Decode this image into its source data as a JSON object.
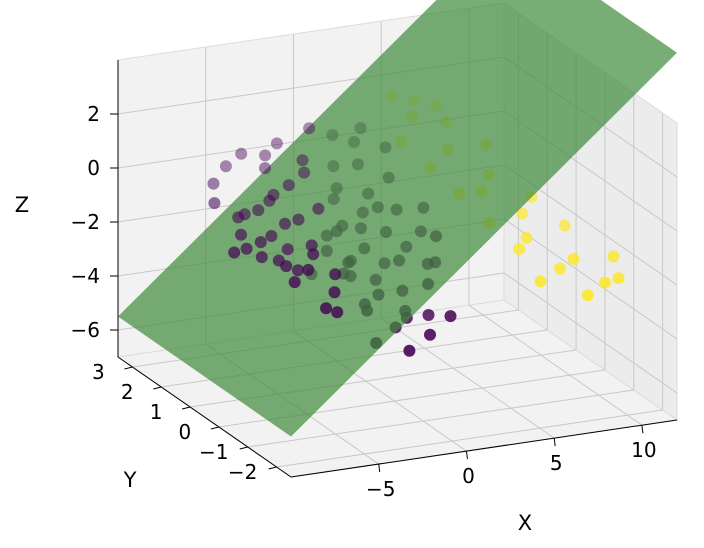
{
  "chart_data": {
    "type": "scatter3d",
    "title": "",
    "xlabel": "X",
    "ylabel": "Y",
    "zlabel": "Z",
    "xlim": [
      -10,
      12
    ],
    "ylim": [
      -2.5,
      3.5
    ],
    "zlim": [
      -7,
      4
    ],
    "xticks": [
      {
        "v": -5,
        "label": "−5"
      },
      {
        "v": 0,
        "label": "0"
      },
      {
        "v": 5,
        "label": "5"
      },
      {
        "v": 10,
        "label": "10"
      }
    ],
    "yticks": [
      {
        "v": -2,
        "label": "−2"
      },
      {
        "v": -1,
        "label": "−1"
      },
      {
        "v": 0,
        "label": "0"
      },
      {
        "v": 1,
        "label": "1"
      },
      {
        "v": 2,
        "label": "2"
      },
      {
        "v": 3,
        "label": "3"
      }
    ],
    "zticks": [
      {
        "v": -6,
        "label": "−6"
      },
      {
        "v": -4,
        "label": "−4"
      },
      {
        "v": -2,
        "label": "−2"
      },
      {
        "v": 0,
        "label": "0"
      },
      {
        "v": 2,
        "label": "2"
      }
    ],
    "grid": true,
    "colors": {
      "class0": "#440154",
      "class1": "#fde725",
      "plane": "#3f8a3a",
      "pane": "#f2f2f2",
      "grid": "#c8c8c8"
    },
    "plane": {
      "note": "decision plane z = a*x + b*y + c",
      "a": 0.55,
      "b": 0,
      "c": 0,
      "xrange": [
        -10,
        12
      ],
      "yrange": [
        -2.5,
        3.5
      ]
    },
    "series": [
      {
        "class": 0,
        "points": [
          [
            -8.8,
            0.2,
            -0.8
          ],
          [
            -7.6,
            0.5,
            -1.0
          ],
          [
            -7.1,
            1.0,
            -0.9
          ],
          [
            -6.9,
            0.4,
            -1.3
          ],
          [
            -6.6,
            1.4,
            -0.6
          ],
          [
            -6.3,
            0.8,
            -1.1
          ],
          [
            -6.0,
            0.1,
            -1.5
          ],
          [
            -5.9,
            1.6,
            -0.7
          ],
          [
            -5.6,
            0.6,
            -1.7
          ],
          [
            -5.4,
            -0.3,
            -1.4
          ],
          [
            -5.2,
            1.1,
            -1.2
          ],
          [
            -5.0,
            0.3,
            -1.9
          ],
          [
            -4.8,
            1.8,
            -0.8
          ],
          [
            -4.6,
            0.9,
            -1.6
          ],
          [
            -4.4,
            -0.6,
            -2.1
          ],
          [
            -4.3,
            0.2,
            -1.3
          ],
          [
            -4.1,
            1.3,
            -1.0
          ],
          [
            -3.9,
            0.5,
            -2.3
          ],
          [
            -3.7,
            -0.2,
            -1.8
          ],
          [
            -3.6,
            2.0,
            -0.5
          ],
          [
            -3.4,
            0.8,
            -1.5
          ],
          [
            -3.2,
            -1.0,
            -2.6
          ],
          [
            -3.0,
            1.5,
            -1.1
          ],
          [
            -2.9,
            0.0,
            -2.0
          ],
          [
            -2.7,
            0.7,
            -1.7
          ],
          [
            -2.5,
            -0.5,
            -2.8
          ],
          [
            -2.4,
            2.2,
            -0.4
          ],
          [
            -2.2,
            1.0,
            -1.4
          ],
          [
            -2.0,
            0.3,
            -2.4
          ],
          [
            -1.9,
            -1.2,
            -3.2
          ],
          [
            -1.7,
            1.6,
            -0.9
          ],
          [
            -1.5,
            0.6,
            -2.1
          ],
          [
            -1.4,
            -0.3,
            -2.7
          ],
          [
            -1.2,
            2.4,
            -0.2
          ],
          [
            -1.0,
            1.2,
            -1.3
          ],
          [
            -0.9,
            0.1,
            -2.5
          ],
          [
            -0.7,
            -0.8,
            -3.0
          ],
          [
            -0.5,
            1.8,
            -0.8
          ],
          [
            -0.4,
            0.8,
            -1.9
          ],
          [
            -0.2,
            -0.4,
            -2.6
          ],
          [
            0.0,
            2.0,
            -0.6
          ],
          [
            0.1,
            0.4,
            -2.2
          ],
          [
            0.3,
            -1.0,
            -3.1
          ],
          [
            0.5,
            1.4,
            -1.1
          ],
          [
            0.6,
            0.2,
            -2.0
          ],
          [
            0.8,
            2.6,
            -0.3
          ],
          [
            1.0,
            0.9,
            -1.5
          ],
          [
            1.1,
            -0.5,
            -2.4
          ],
          [
            1.3,
            1.7,
            -0.7
          ],
          [
            1.5,
            0.5,
            -1.8
          ],
          [
            1.7,
            2.3,
            -0.1
          ],
          [
            1.9,
            0.0,
            -2.1
          ],
          [
            2.1,
            1.2,
            -1.0
          ],
          [
            2.3,
            2.8,
            0.3
          ],
          [
            2.5,
            0.6,
            -1.4
          ],
          [
            2.8,
            1.9,
            -0.4
          ],
          [
            3.0,
            3.0,
            0.6
          ],
          [
            3.3,
            1.0,
            -0.9
          ],
          [
            3.6,
            2.5,
            0.2
          ],
          [
            -6.2,
            2.5,
            -0.2
          ],
          [
            -5.0,
            2.8,
            0.1
          ],
          [
            -3.8,
            3.0,
            0.3
          ],
          [
            -2.6,
            2.9,
            0.2
          ],
          [
            -1.6,
            3.1,
            0.4
          ],
          [
            -0.8,
            2.7,
            0.0
          ],
          [
            0.4,
            3.2,
            0.7
          ],
          [
            1.4,
            3.0,
            0.5
          ],
          [
            -7.3,
            1.8,
            -0.3
          ],
          [
            -4.9,
            -1.0,
            -2.5
          ],
          [
            -3.5,
            -1.5,
            -3.4
          ],
          [
            -2.1,
            -1.8,
            -3.6
          ],
          [
            -0.6,
            -1.6,
            -3.3
          ],
          [
            0.9,
            -1.4,
            -2.9
          ],
          [
            -6.5,
            -0.5,
            -1.6
          ],
          [
            -5.7,
            -1.1,
            -2.2
          ],
          [
            -4.0,
            1.9,
            -0.6
          ],
          [
            -3.1,
            2.6,
            0.0
          ],
          [
            -1.1,
            -1.1,
            -3.0
          ],
          [
            2.0,
            -0.2,
            -1.9
          ],
          [
            2.7,
            0.2,
            -1.3
          ],
          [
            -2.3,
            0.2,
            -1.8
          ],
          [
            -1.8,
            0.9,
            -1.2
          ],
          [
            -0.1,
            1.1,
            -1.4
          ],
          [
            1.2,
            1.3,
            -0.9
          ]
        ]
      },
      {
        "class": 1,
        "points": [
          [
            4.0,
            2.2,
            0.6
          ],
          [
            4.5,
            1.5,
            0.1
          ],
          [
            5.0,
            0.8,
            -0.4
          ],
          [
            5.3,
            2.6,
            1.1
          ],
          [
            5.6,
            0.1,
            -1.0
          ],
          [
            6.0,
            1.8,
            0.4
          ],
          [
            6.3,
            -0.5,
            -1.6
          ],
          [
            6.6,
            1.0,
            -0.6
          ],
          [
            6.9,
            2.4,
            0.9
          ],
          [
            7.2,
            -0.2,
            -1.5
          ],
          [
            7.5,
            1.3,
            -0.3
          ],
          [
            7.8,
            -1.0,
            -2.1
          ],
          [
            8.1,
            0.5,
            -1.2
          ],
          [
            8.5,
            2.0,
            0.2
          ],
          [
            8.9,
            -0.8,
            -2.0
          ],
          [
            9.3,
            0.9,
            -1.0
          ],
          [
            9.7,
            -1.4,
            -2.5
          ],
          [
            10.2,
            0.3,
            -1.7
          ],
          [
            10.8,
            -1.2,
            -2.6
          ],
          [
            4.8,
            3.0,
            1.6
          ],
          [
            5.9,
            2.9,
            1.4
          ],
          [
            7.0,
            2.8,
            1.2
          ],
          [
            6.2,
            -1.3,
            -2.2
          ],
          [
            8.4,
            -1.6,
            -2.7
          ],
          [
            11.5,
            -0.6,
            -2.3
          ]
        ]
      }
    ]
  }
}
